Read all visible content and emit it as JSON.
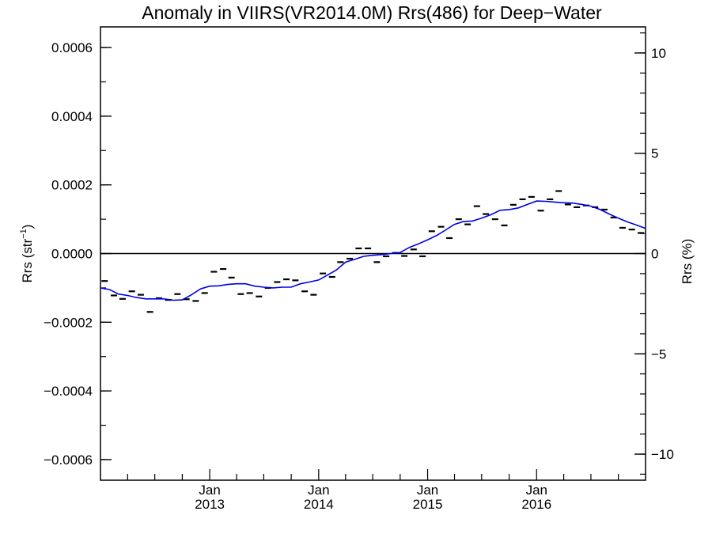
{
  "chart_data": {
    "type": "scatter",
    "title": "Anomaly in VIIRS(VR2014.0M) Rrs(486) for Deep−Water",
    "ylabel_left_main": "Rrs (str",
    "ylabel_left_sup": "−1",
    "ylabel_left_close": ")",
    "ylabel_right": "Rrs (%)",
    "x_range": [
      "2012-01-01",
      "2016-12-31"
    ],
    "ylim_left": [
      -0.00066,
      0.00066
    ],
    "ylim_right": [
      -11.3,
      11.3
    ],
    "grid": false,
    "x_ticks": [
      {
        "month": "Jan",
        "year": "2013",
        "date": "2013-01-01"
      },
      {
        "month": "Jan",
        "year": "2014",
        "date": "2014-01-01"
      },
      {
        "month": "Jan",
        "year": "2015",
        "date": "2015-01-01"
      },
      {
        "month": "Jan",
        "year": "2016",
        "date": "2016-01-01"
      }
    ],
    "y_ticks_left": [
      {
        "value": 0.0006,
        "label": "0.0006"
      },
      {
        "value": 0.0004,
        "label": "0.0004"
      },
      {
        "value": 0.0002,
        "label": "0.0002"
      },
      {
        "value": 0.0,
        "label": "0.0000"
      },
      {
        "value": -0.0002,
        "label": "−0.0002"
      },
      {
        "value": -0.0004,
        "label": "−0.0004"
      },
      {
        "value": -0.0006,
        "label": "−0.0006"
      }
    ],
    "y_ticks_right": [
      {
        "value": 10,
        "label": "10"
      },
      {
        "value": 5,
        "label": "5"
      },
      {
        "value": 0,
        "label": "0"
      },
      {
        "value": -5,
        "label": "−5"
      },
      {
        "value": -10,
        "label": "−10"
      }
    ],
    "series": [
      {
        "kind": "monthly_anomaly_markers",
        "color": "#000000",
        "points": [
          {
            "x": "2012-01",
            "y": -8e-05
          },
          {
            "x": "2012-02",
            "y": -0.000122
          },
          {
            "x": "2012-03",
            "y": -0.000132
          },
          {
            "x": "2012-04",
            "y": -0.00011
          },
          {
            "x": "2012-05",
            "y": -0.00012
          },
          {
            "x": "2012-06",
            "y": -0.00017
          },
          {
            "x": "2012-07",
            "y": -0.00013
          },
          {
            "x": "2012-08",
            "y": -0.000135
          },
          {
            "x": "2012-09",
            "y": -0.000118
          },
          {
            "x": "2012-10",
            "y": -0.000133
          },
          {
            "x": "2012-11",
            "y": -0.000138
          },
          {
            "x": "2012-12",
            "y": -0.000115
          },
          {
            "x": "2013-01",
            "y": -5.3e-05
          },
          {
            "x": "2013-02",
            "y": -4.5e-05
          },
          {
            "x": "2013-03",
            "y": -7e-05
          },
          {
            "x": "2013-04",
            "y": -0.000118
          },
          {
            "x": "2013-05",
            "y": -0.000115
          },
          {
            "x": "2013-06",
            "y": -0.000125
          },
          {
            "x": "2013-07",
            "y": -0.0001
          },
          {
            "x": "2013-08",
            "y": -8.3e-05
          },
          {
            "x": "2013-09",
            "y": -7.5e-05
          },
          {
            "x": "2013-10",
            "y": -7.8e-05
          },
          {
            "x": "2013-11",
            "y": -0.00011
          },
          {
            "x": "2013-12",
            "y": -0.00012
          },
          {
            "x": "2014-01",
            "y": -5.8e-05
          },
          {
            "x": "2014-02",
            "y": -6.8e-05
          },
          {
            "x": "2014-03",
            "y": -2.5e-05
          },
          {
            "x": "2014-04",
            "y": -1.5e-05
          },
          {
            "x": "2014-05",
            "y": 1.5e-05
          },
          {
            "x": "2014-06",
            "y": 1.5e-05
          },
          {
            "x": "2014-07",
            "y": -2.5e-05
          },
          {
            "x": "2014-08",
            "y": -8e-06
          },
          {
            "x": "2014-09",
            "y": 2e-06
          },
          {
            "x": "2014-10",
            "y": -7e-06
          },
          {
            "x": "2014-11",
            "y": 1.2e-05
          },
          {
            "x": "2014-12",
            "y": -8e-06
          },
          {
            "x": "2015-01",
            "y": 6.5e-05
          },
          {
            "x": "2015-02",
            "y": 7.8e-05
          },
          {
            "x": "2015-03",
            "y": 4.5e-05
          },
          {
            "x": "2015-04",
            "y": 0.0001
          },
          {
            "x": "2015-05",
            "y": 8.5e-05
          },
          {
            "x": "2015-06",
            "y": 0.000138
          },
          {
            "x": "2015-07",
            "y": 0.000115
          },
          {
            "x": "2015-08",
            "y": 0.0001
          },
          {
            "x": "2015-09",
            "y": 8.2e-05
          },
          {
            "x": "2015-10",
            "y": 0.000142
          },
          {
            "x": "2015-11",
            "y": 0.000158
          },
          {
            "x": "2015-12",
            "y": 0.000165
          },
          {
            "x": "2016-01",
            "y": 0.000125
          },
          {
            "x": "2016-02",
            "y": 0.000158
          },
          {
            "x": "2016-03",
            "y": 0.000182
          },
          {
            "x": "2016-04",
            "y": 0.000143
          },
          {
            "x": "2016-05",
            "y": 0.000135
          },
          {
            "x": "2016-06",
            "y": 0.00014
          },
          {
            "x": "2016-07",
            "y": 0.000135
          },
          {
            "x": "2016-08",
            "y": 0.000128
          },
          {
            "x": "2016-09",
            "y": 0.000105
          },
          {
            "x": "2016-10",
            "y": 7.5e-05
          },
          {
            "x": "2016-11",
            "y": 7e-05
          },
          {
            "x": "2016-12",
            "y": 6e-05
          }
        ]
      },
      {
        "kind": "running_mean_line",
        "color": "#0000e6",
        "points": [
          {
            "x": "2012-01-01",
            "y": -0.0001
          },
          {
            "x": "2012-02-01",
            "y": -0.000105
          },
          {
            "x": "2012-03-01",
            "y": -0.000118
          },
          {
            "x": "2012-04-01",
            "y": -0.000122
          },
          {
            "x": "2012-05-01",
            "y": -0.000128
          },
          {
            "x": "2012-06-01",
            "y": -0.000132
          },
          {
            "x": "2012-07-01",
            "y": -0.000132
          },
          {
            "x": "2012-08-01",
            "y": -0.000132
          },
          {
            "x": "2012-09-01",
            "y": -0.000136
          },
          {
            "x": "2012-10-01",
            "y": -0.000135
          },
          {
            "x": "2012-11-01",
            "y": -0.00012
          },
          {
            "x": "2012-12-01",
            "y": -0.000103
          },
          {
            "x": "2013-01-01",
            "y": -9.5e-05
          },
          {
            "x": "2013-02-01",
            "y": -9.4e-05
          },
          {
            "x": "2013-03-01",
            "y": -9e-05
          },
          {
            "x": "2013-04-01",
            "y": -8.8e-05
          },
          {
            "x": "2013-05-01",
            "y": -8.8e-05
          },
          {
            "x": "2013-06-01",
            "y": -9.5e-05
          },
          {
            "x": "2013-07-01",
            "y": -9.8e-05
          },
          {
            "x": "2013-08-01",
            "y": -0.0001
          },
          {
            "x": "2013-09-01",
            "y": -9.8e-05
          },
          {
            "x": "2013-10-01",
            "y": -9.8e-05
          },
          {
            "x": "2013-11-01",
            "y": -8.8e-05
          },
          {
            "x": "2013-12-01",
            "y": -8.3e-05
          },
          {
            "x": "2014-01-01",
            "y": -7.7e-05
          },
          {
            "x": "2014-02-01",
            "y": -6.2e-05
          },
          {
            "x": "2014-03-01",
            "y": -4.8e-05
          },
          {
            "x": "2014-04-01",
            "y": -2.5e-05
          },
          {
            "x": "2014-05-01",
            "y": -1.7e-05
          },
          {
            "x": "2014-06-01",
            "y": -8e-06
          },
          {
            "x": "2014-07-01",
            "y": -5e-06
          },
          {
            "x": "2014-08-01",
            "y": -3e-06
          },
          {
            "x": "2014-09-01",
            "y": 0.0
          },
          {
            "x": "2014-10-01",
            "y": 3e-06
          },
          {
            "x": "2014-11-01",
            "y": 1.8e-05
          },
          {
            "x": "2014-12-01",
            "y": 2.8e-05
          },
          {
            "x": "2015-01-01",
            "y": 4e-05
          },
          {
            "x": "2015-02-01",
            "y": 5.3e-05
          },
          {
            "x": "2015-03-01",
            "y": 6.8e-05
          },
          {
            "x": "2015-04-01",
            "y": 8.5e-05
          },
          {
            "x": "2015-05-01",
            "y": 9.3e-05
          },
          {
            "x": "2015-06-01",
            "y": 9.5e-05
          },
          {
            "x": "2015-07-01",
            "y": 0.000103
          },
          {
            "x": "2015-08-01",
            "y": 0.000113
          },
          {
            "x": "2015-09-01",
            "y": 0.000126
          },
          {
            "x": "2015-10-01",
            "y": 0.000128
          },
          {
            "x": "2015-11-01",
            "y": 0.000133
          },
          {
            "x": "2015-12-01",
            "y": 0.000143
          },
          {
            "x": "2016-01-01",
            "y": 0.000153
          },
          {
            "x": "2016-02-01",
            "y": 0.000152
          },
          {
            "x": "2016-03-01",
            "y": 0.00015
          },
          {
            "x": "2016-04-01",
            "y": 0.000148
          },
          {
            "x": "2016-05-01",
            "y": 0.000147
          },
          {
            "x": "2016-06-01",
            "y": 0.000143
          },
          {
            "x": "2016-07-01",
            "y": 0.000138
          },
          {
            "x": "2016-08-01",
            "y": 0.000128
          },
          {
            "x": "2016-09-01",
            "y": 0.000115
          },
          {
            "x": "2016-10-01",
            "y": 0.000103
          },
          {
            "x": "2016-11-01",
            "y": 9.2e-05
          },
          {
            "x": "2016-12-01",
            "y": 8.3e-05
          },
          {
            "x": "2016-12-31",
            "y": 7.3e-05
          }
        ]
      }
    ]
  }
}
